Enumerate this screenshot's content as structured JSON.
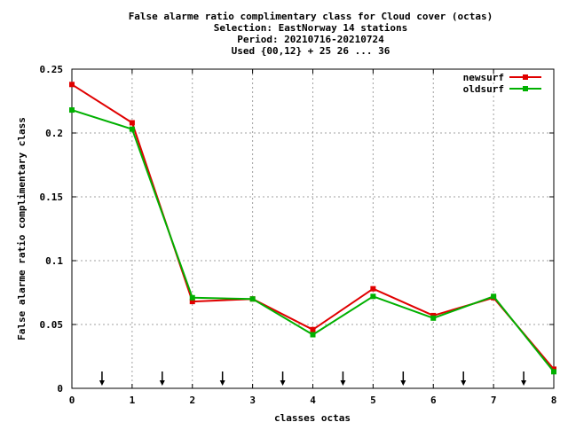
{
  "chart_data": {
    "type": "line",
    "title_lines": [
      "False alarme ratio complimentary class  for Cloud cover (octas)",
      "Selection: EastNorway     14 stations",
      "Period: 20210716-20210724",
      "Used {00,12} + 25 26 ... 36"
    ],
    "xlabel": "classes octas",
    "ylabel": "False alarme ratio complimentary class",
    "xlim": [
      0,
      8
    ],
    "ylim": [
      0,
      0.25
    ],
    "x_ticks": [
      0,
      1,
      2,
      3,
      4,
      5,
      6,
      7,
      8
    ],
    "x_tick_labels": [
      "0",
      "1",
      "2",
      "3",
      "4",
      "5",
      "6",
      "7",
      "8"
    ],
    "y_ticks": [
      0,
      0.05,
      0.1,
      0.15,
      0.2,
      0.25
    ],
    "y_tick_labels": [
      "0",
      "0.05",
      "0.1",
      "0.15",
      "0.2",
      "0.25"
    ],
    "grid": true,
    "legend_position": "top-right",
    "x": [
      0,
      1,
      2,
      3,
      4,
      5,
      6,
      7,
      8
    ],
    "series": [
      {
        "name": "newsurf",
        "color": "#e00000",
        "values": [
          0.238,
          0.208,
          0.068,
          0.07,
          0.046,
          0.078,
          0.057,
          0.071,
          0.015
        ]
      },
      {
        "name": "oldsurf",
        "color": "#00b000",
        "values": [
          0.218,
          0.203,
          0.071,
          0.07,
          0.042,
          0.072,
          0.055,
          0.072,
          0.013
        ]
      }
    ],
    "class_boundary_markers": [
      0.5,
      1.5,
      2.5,
      3.5,
      4.5,
      5.5,
      6.5,
      7.5
    ]
  }
}
